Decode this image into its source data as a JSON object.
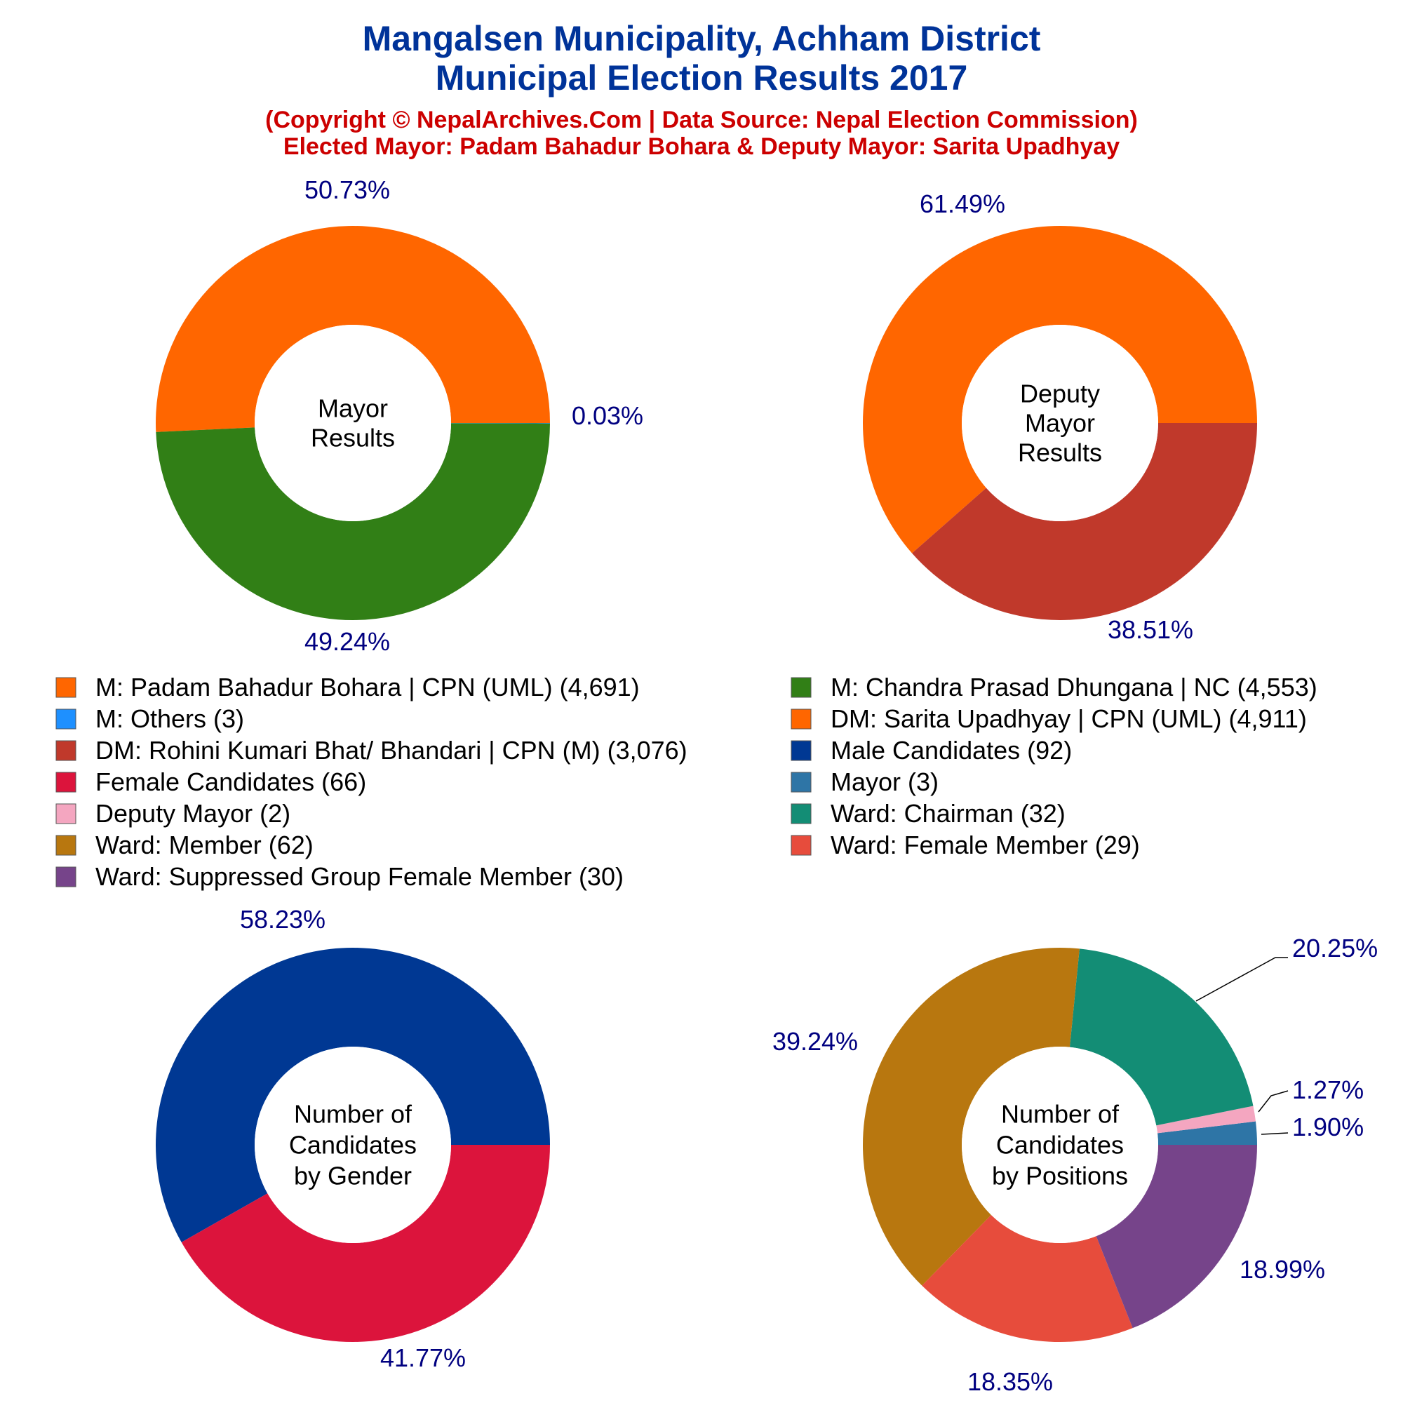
{
  "header": {
    "title_line1": "Mangalsen Municipality, Achham District",
    "title_line2": "Municipal Election Results 2017",
    "subtitle_line1": "(Copyright © NepalArchives.Com | Data Source: Nepal Election Commission)",
    "subtitle_line2": "Elected Mayor: Padam Bahadur Bohara & Deputy Mayor: Sarita Upadhyay"
  },
  "legend": [
    {
      "label": "M: Padam Bahadur Bohara | CPN (UML) (4,691)",
      "color": "#ff6600"
    },
    {
      "label": "M: Chandra Prasad Dhungana | NC (4,553)",
      "color": "#317f16"
    },
    {
      "label": "M: Others (3)",
      "color": "#1e90ff"
    },
    {
      "label": "DM: Sarita Upadhyay | CPN (UML) (4,911)",
      "color": "#ff6600"
    },
    {
      "label": "DM: Rohini Kumari Bhat/ Bhandari | CPN (M) (3,076)",
      "color": "#c0392b"
    },
    {
      "label": "Male Candidates (92)",
      "color": "#003893"
    },
    {
      "label": "Female Candidates (66)",
      "color": "#dc143c"
    },
    {
      "label": "Mayor (3)",
      "color": "#2e75a6"
    },
    {
      "label": "Deputy Mayor (2)",
      "color": "#f4a6c0"
    },
    {
      "label": "Ward: Chairman (32)",
      "color": "#138d75"
    },
    {
      "label": "Ward: Member (62)",
      "color": "#b8770f"
    },
    {
      "label": "Ward: Female Member (29)",
      "color": "#e74c3c"
    },
    {
      "label": "Ward: Suppressed Group Female Member (30)",
      "color": "#76448a"
    }
  ],
  "chart_data": [
    {
      "type": "pie",
      "center_label": [
        "Mayor",
        "Results"
      ],
      "slices": [
        {
          "label": "M: Padam Bahadur Bohara | CPN (UML)",
          "value": 4691,
          "pct_label": "50.73%",
          "color": "#ff6600"
        },
        {
          "label": "M: Chandra Prasad Dhungana | NC",
          "value": 4553,
          "pct_label": "49.24%",
          "color": "#317f16"
        },
        {
          "label": "M: Others",
          "value": 3,
          "pct_label": "0.03%",
          "color": "#1e90ff"
        }
      ]
    },
    {
      "type": "pie",
      "center_label": [
        "Deputy",
        "Mayor",
        "Results"
      ],
      "slices": [
        {
          "label": "DM: Sarita Upadhyay | CPN (UML)",
          "value": 4911,
          "pct_label": "61.49%",
          "color": "#ff6600"
        },
        {
          "label": "DM: Rohini Kumari Bhat/ Bhandari | CPN (M)",
          "value": 3076,
          "pct_label": "38.51%",
          "color": "#c0392b"
        }
      ]
    },
    {
      "type": "pie",
      "center_label": [
        "Number of",
        "Candidates",
        "by Gender"
      ],
      "slices": [
        {
          "label": "Male Candidates",
          "value": 92,
          "pct_label": "58.23%",
          "color": "#003893"
        },
        {
          "label": "Female Candidates",
          "value": 66,
          "pct_label": "41.77%",
          "color": "#dc143c"
        }
      ]
    },
    {
      "type": "pie",
      "center_label": [
        "Number of",
        "Candidates",
        "by Positions"
      ],
      "slices": [
        {
          "label": "Mayor",
          "value": 3,
          "pct_label": "1.90%",
          "color": "#2e75a6"
        },
        {
          "label": "Deputy Mayor",
          "value": 2,
          "pct_label": "1.27%",
          "color": "#f4a6c0"
        },
        {
          "label": "Ward: Chairman",
          "value": 32,
          "pct_label": "20.25%",
          "color": "#138d75"
        },
        {
          "label": "Ward: Member",
          "value": 62,
          "pct_label": "39.24%",
          "color": "#b8770f"
        },
        {
          "label": "Ward: Female Member",
          "value": 29,
          "pct_label": "18.35%",
          "color": "#e74c3c"
        },
        {
          "label": "Ward: Suppressed Group Female Member",
          "value": 30,
          "pct_label": "18.99%",
          "color": "#76448a"
        }
      ]
    }
  ]
}
